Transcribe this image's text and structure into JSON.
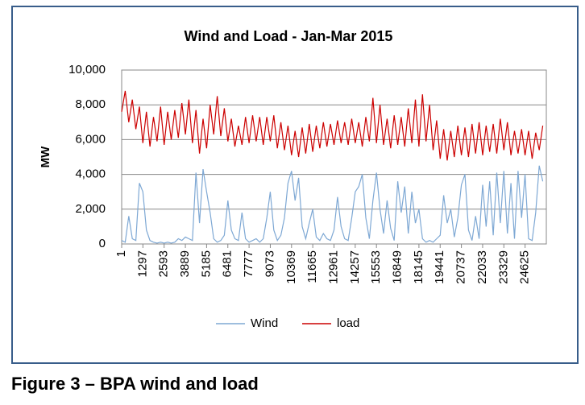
{
  "chart_data": {
    "type": "line",
    "title": "Wind and Load - Jan-Mar 2015",
    "ylabel": "MW",
    "xlim": [
      1,
      25921
    ],
    "xticks": [
      1,
      1297,
      2593,
      3889,
      5185,
      6481,
      7777,
      9073,
      10369,
      11665,
      12961,
      14257,
      15553,
      16849,
      18145,
      19441,
      20737,
      22033,
      23329,
      24625
    ],
    "ylim": [
      0,
      10000
    ],
    "yticks": [
      0,
      {
        "value": 2000,
        "label": "2,000"
      },
      {
        "value": 4000,
        "label": "4,000"
      },
      {
        "value": 6000,
        "label": "6,000"
      },
      {
        "value": 8000,
        "label": "8,000"
      },
      {
        "value": 10000,
        "label": "10,000"
      }
    ],
    "grid": true,
    "legend": "bottom",
    "x": [
      1,
      217,
      433,
      649,
      865,
      1081,
      1297,
      1513,
      1729,
      1945,
      2161,
      2377,
      2593,
      2809,
      3025,
      3241,
      3457,
      3673,
      3889,
      4105,
      4321,
      4537,
      4753,
      4969,
      5185,
      5401,
      5617,
      5833,
      6049,
      6265,
      6481,
      6697,
      6913,
      7129,
      7345,
      7561,
      7777,
      7993,
      8209,
      8425,
      8641,
      8857,
      9073,
      9289,
      9505,
      9721,
      9937,
      10153,
      10369,
      10585,
      10801,
      11017,
      11233,
      11449,
      11665,
      11881,
      12097,
      12313,
      12529,
      12745,
      12961,
      13177,
      13393,
      13609,
      13825,
      14041,
      14257,
      14473,
      14689,
      14905,
      15121,
      15337,
      15553,
      15769,
      15985,
      16201,
      16417,
      16633,
      16849,
      17065,
      17281,
      17497,
      17713,
      17929,
      18145,
      18361,
      18577,
      18793,
      19009,
      19225,
      19441,
      19657,
      19873,
      20089,
      20305,
      20521,
      20737,
      20953,
      21169,
      21385,
      21601,
      21817,
      22033,
      22249,
      22465,
      22681,
      22897,
      23113,
      23329,
      23545,
      23761,
      23977,
      24193,
      24409,
      24625,
      24841,
      25057,
      25273,
      25489,
      25705
    ],
    "series": [
      {
        "name": "Wind",
        "color": "#7ea8d4",
        "values": [
          200,
          100,
          1600,
          300,
          200,
          3500,
          3000,
          800,
          200,
          100,
          50,
          100,
          50,
          100,
          50,
          100,
          300,
          200,
          400,
          300,
          200,
          4100,
          1200,
          4300,
          3000,
          1800,
          300,
          100,
          200,
          500,
          2500,
          800,
          300,
          200,
          1800,
          300,
          100,
          200,
          300,
          100,
          300,
          1500,
          3000,
          800,
          200,
          500,
          1500,
          3500,
          4200,
          2500,
          3800,
          1000,
          300,
          1200,
          2000,
          400,
          200,
          600,
          300,
          200,
          800,
          2700,
          1000,
          300,
          200,
          1500,
          3000,
          3300,
          4000,
          1500,
          300,
          2500,
          4100,
          2000,
          600,
          2500,
          900,
          200,
          3600,
          1800,
          3300,
          600,
          3000,
          1200,
          2000,
          300,
          100,
          200,
          100,
          300,
          500,
          2800,
          1200,
          2000,
          400,
          1500,
          3400,
          4000,
          800,
          200,
          1600,
          300,
          3400,
          1000,
          3600,
          500,
          4100,
          1200,
          4200,
          600,
          3500,
          300,
          4200,
          1500,
          4000,
          300,
          200,
          1800,
          4500,
          3600
        ]
      },
      {
        "name": "load",
        "color": "#cc0000",
        "values": [
          7600,
          8800,
          7000,
          8300,
          6600,
          7900,
          5800,
          7600,
          5600,
          7300,
          5900,
          7900,
          5700,
          7600,
          6000,
          7700,
          6100,
          8100,
          6300,
          8300,
          5800,
          7700,
          5200,
          7200,
          5500,
          8000,
          6300,
          8500,
          6200,
          7800,
          5900,
          7200,
          5600,
          6800,
          5700,
          7300,
          5800,
          7400,
          5900,
          7300,
          5700,
          7300,
          5900,
          7400,
          5500,
          7000,
          5400,
          6800,
          5100,
          6500,
          5000,
          6700,
          5200,
          6900,
          5300,
          6800,
          5500,
          7000,
          5600,
          6900,
          5700,
          7100,
          5800,
          7000,
          5700,
          7200,
          5800,
          7000,
          5600,
          7300,
          5900,
          8400,
          5800,
          8000,
          5700,
          7200,
          5500,
          7400,
          5700,
          7300,
          5600,
          7800,
          5800,
          8300,
          5600,
          8600,
          5900,
          8000,
          5400,
          7100,
          4900,
          6600,
          4800,
          6500,
          5000,
          6800,
          5100,
          6700,
          5000,
          6900,
          5200,
          7000,
          5100,
          6800,
          5300,
          6900,
          5200,
          7200,
          5400,
          7000,
          5100,
          6500,
          5200,
          6600,
          5100,
          6500,
          4900,
          6400,
          5400,
          6800
        ]
      }
    ]
  },
  "caption": "Figure 3 – BPA wind and load"
}
